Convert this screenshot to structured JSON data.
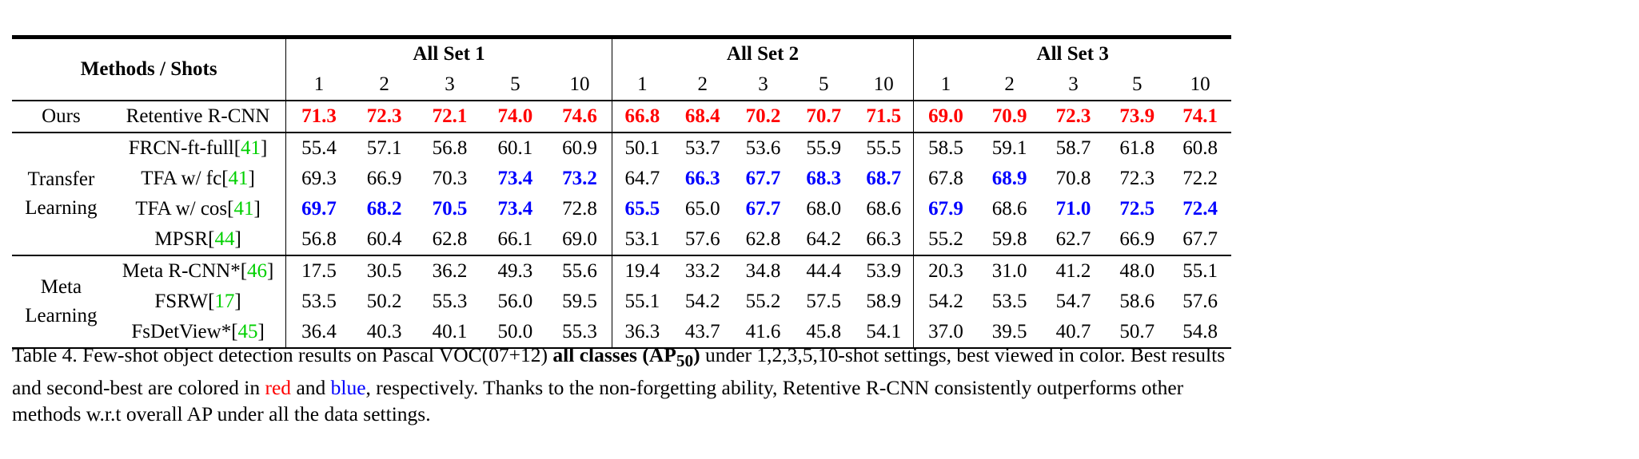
{
  "header": {
    "methods_shots": "Methods / Shots",
    "sets": [
      "All Set 1",
      "All Set 2",
      "All Set 3"
    ],
    "shots": [
      "1",
      "2",
      "3",
      "5",
      "10"
    ]
  },
  "groups": [
    {
      "label": [
        "Ours"
      ],
      "rows": [
        {
          "name": "Retentive R-CNN",
          "ref": "",
          "vals": [
            [
              "71.3",
              "r"
            ],
            [
              "72.3",
              "r"
            ],
            [
              "72.1",
              "r"
            ],
            [
              "74.0",
              "r"
            ],
            [
              "74.6",
              "r"
            ],
            [
              "66.8",
              "r"
            ],
            [
              "68.4",
              "r"
            ],
            [
              "70.2",
              "r"
            ],
            [
              "70.7",
              "r"
            ],
            [
              "71.5",
              "r"
            ],
            [
              "69.0",
              "r"
            ],
            [
              "70.9",
              "r"
            ],
            [
              "72.3",
              "r"
            ],
            [
              "73.9",
              "r"
            ],
            [
              "74.1",
              "r"
            ]
          ]
        }
      ]
    },
    {
      "label": [
        "Transfer",
        "Learning"
      ],
      "rows": [
        {
          "name": "FRCN-ft-full[",
          "ref": "41",
          "vals": [
            [
              "55.4",
              ""
            ],
            [
              "57.1",
              ""
            ],
            [
              "56.8",
              ""
            ],
            [
              "60.1",
              ""
            ],
            [
              "60.9",
              ""
            ],
            [
              "50.1",
              ""
            ],
            [
              "53.7",
              ""
            ],
            [
              "53.6",
              ""
            ],
            [
              "55.9",
              ""
            ],
            [
              "55.5",
              ""
            ],
            [
              "58.5",
              ""
            ],
            [
              "59.1",
              ""
            ],
            [
              "58.7",
              ""
            ],
            [
              "61.8",
              ""
            ],
            [
              "60.8",
              ""
            ]
          ]
        },
        {
          "name": "TFA w/ fc[",
          "ref": "41",
          "vals": [
            [
              "69.3",
              ""
            ],
            [
              "66.9",
              ""
            ],
            [
              "70.3",
              ""
            ],
            [
              "73.4",
              "b"
            ],
            [
              "73.2",
              "b"
            ],
            [
              "64.7",
              ""
            ],
            [
              "66.3",
              "b"
            ],
            [
              "67.7",
              "b"
            ],
            [
              "68.3",
              "b"
            ],
            [
              "68.7",
              "b"
            ],
            [
              "67.8",
              ""
            ],
            [
              "68.9",
              "b"
            ],
            [
              "70.8",
              ""
            ],
            [
              "72.3",
              ""
            ],
            [
              "72.2",
              ""
            ]
          ]
        },
        {
          "name": "TFA w/ cos[",
          "ref": "41",
          "vals": [
            [
              "69.7",
              "b"
            ],
            [
              "68.2",
              "b"
            ],
            [
              "70.5",
              "b"
            ],
            [
              "73.4",
              "b"
            ],
            [
              "72.8",
              ""
            ],
            [
              "65.5",
              "b"
            ],
            [
              "65.0",
              ""
            ],
            [
              "67.7",
              "b"
            ],
            [
              "68.0",
              ""
            ],
            [
              "68.6",
              ""
            ],
            [
              "67.9",
              "b"
            ],
            [
              "68.6",
              ""
            ],
            [
              "71.0",
              "b"
            ],
            [
              "72.5",
              "b"
            ],
            [
              "72.4",
              "b"
            ]
          ]
        },
        {
          "name": "MPSR[",
          "ref": "44",
          "vals": [
            [
              "56.8",
              ""
            ],
            [
              "60.4",
              ""
            ],
            [
              "62.8",
              ""
            ],
            [
              "66.1",
              ""
            ],
            [
              "69.0",
              ""
            ],
            [
              "53.1",
              ""
            ],
            [
              "57.6",
              ""
            ],
            [
              "62.8",
              ""
            ],
            [
              "64.2",
              ""
            ],
            [
              "66.3",
              ""
            ],
            [
              "55.2",
              ""
            ],
            [
              "59.8",
              ""
            ],
            [
              "62.7",
              ""
            ],
            [
              "66.9",
              ""
            ],
            [
              "67.7",
              ""
            ]
          ]
        }
      ]
    },
    {
      "label": [
        "Meta",
        "Learning"
      ],
      "rows": [
        {
          "name": "Meta R-CNN*[",
          "ref": "46",
          "vals": [
            [
              "17.5",
              ""
            ],
            [
              "30.5",
              ""
            ],
            [
              "36.2",
              ""
            ],
            [
              "49.3",
              ""
            ],
            [
              "55.6",
              ""
            ],
            [
              "19.4",
              ""
            ],
            [
              "33.2",
              ""
            ],
            [
              "34.8",
              ""
            ],
            [
              "44.4",
              ""
            ],
            [
              "53.9",
              ""
            ],
            [
              "20.3",
              ""
            ],
            [
              "31.0",
              ""
            ],
            [
              "41.2",
              ""
            ],
            [
              "48.0",
              ""
            ],
            [
              "55.1",
              ""
            ]
          ]
        },
        {
          "name": "FSRW[",
          "ref": "17",
          "vals": [
            [
              "53.5",
              ""
            ],
            [
              "50.2",
              ""
            ],
            [
              "55.3",
              ""
            ],
            [
              "56.0",
              ""
            ],
            [
              "59.5",
              ""
            ],
            [
              "55.1",
              ""
            ],
            [
              "54.2",
              ""
            ],
            [
              "55.2",
              ""
            ],
            [
              "57.5",
              ""
            ],
            [
              "58.9",
              ""
            ],
            [
              "54.2",
              ""
            ],
            [
              "53.5",
              ""
            ],
            [
              "54.7",
              ""
            ],
            [
              "58.6",
              ""
            ],
            [
              "57.6",
              ""
            ]
          ]
        },
        {
          "name": "FsDetView*[",
          "ref": "45",
          "vals": [
            [
              "36.4",
              ""
            ],
            [
              "40.3",
              ""
            ],
            [
              "40.1",
              ""
            ],
            [
              "50.0",
              ""
            ],
            [
              "55.3",
              ""
            ],
            [
              "36.3",
              ""
            ],
            [
              "43.7",
              ""
            ],
            [
              "41.6",
              ""
            ],
            [
              "45.8",
              ""
            ],
            [
              "54.1",
              ""
            ],
            [
              "37.0",
              ""
            ],
            [
              "39.5",
              ""
            ],
            [
              "40.7",
              ""
            ],
            [
              "50.7",
              ""
            ],
            [
              "54.8",
              ""
            ]
          ]
        }
      ]
    }
  ],
  "caption": {
    "p1": "Table 4. Few-shot object detection results on Pascal VOC(07+12) ",
    "bold": "all classes (AP",
    "sub": "50",
    "bold_end": ")",
    "p2": " under 1,2,3,5,10-shot settings, best viewed in color. Best results and second-best are colored in ",
    "red_word": "red",
    "p3": " and ",
    "blue_word": "blue",
    "p4": ", respectively. Thanks to the non-forgetting ability, Retentive R-CNN consistently outperforms other methods w.r.t overall AP under all the data settings."
  },
  "colors": {
    "best": "#ff0000",
    "second": "#0000ff",
    "ref": "#00d000"
  }
}
